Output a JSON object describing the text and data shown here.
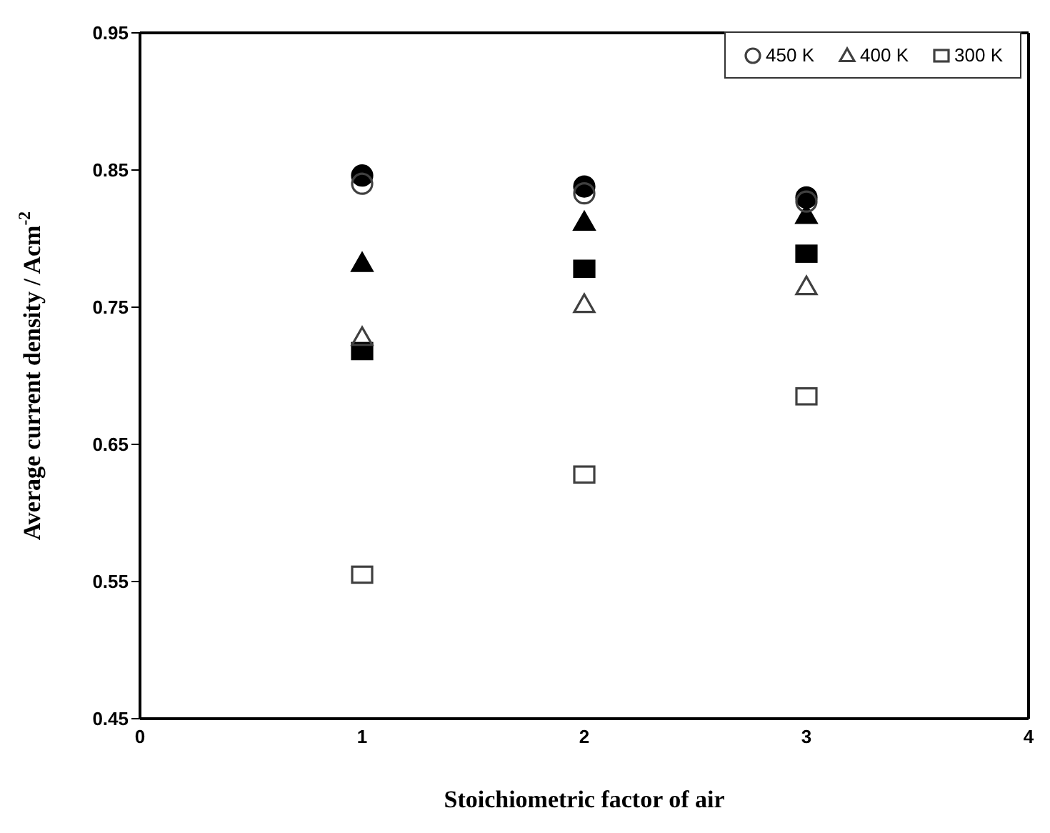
{
  "chart_data": {
    "type": "scatter",
    "xlabel": "Stoichiometric factor of air",
    "ylabel": "Average current density / Acm$^{-2}$",
    "x": [
      1,
      2,
      3
    ],
    "xlim": [
      0,
      4
    ],
    "xticks": [
      0,
      1,
      2,
      3,
      4
    ],
    "ylim": [
      0.45,
      0.95
    ],
    "yticks": [
      0.45,
      0.55,
      0.65,
      0.75,
      0.85,
      0.95
    ],
    "grid": false,
    "legend": "top right",
    "series": [
      {
        "name": "450 K",
        "color": "#404040",
        "marker": "circle",
        "values": [
          0.84,
          0.833,
          0.827
        ]
      },
      {
        "color": "#000000",
        "marker": "circle",
        "values": [
          0.846,
          0.838,
          0.83
        ]
      },
      {
        "name": "400 K",
        "color": "#404040",
        "marker": "triangle",
        "values": [
          0.728,
          0.752,
          0.765
        ]
      },
      {
        "color": "#000000",
        "marker": "triangle",
        "values": [
          0.782,
          0.812,
          0.817
        ]
      },
      {
        "name": "300 K",
        "color": "#404040",
        "marker": "square",
        "values": [
          0.555,
          0.628,
          0.685
        ]
      },
      {
        "color": "#000000",
        "marker": "square",
        "values": [
          0.718,
          0.778,
          0.789
        ]
      }
    ]
  }
}
